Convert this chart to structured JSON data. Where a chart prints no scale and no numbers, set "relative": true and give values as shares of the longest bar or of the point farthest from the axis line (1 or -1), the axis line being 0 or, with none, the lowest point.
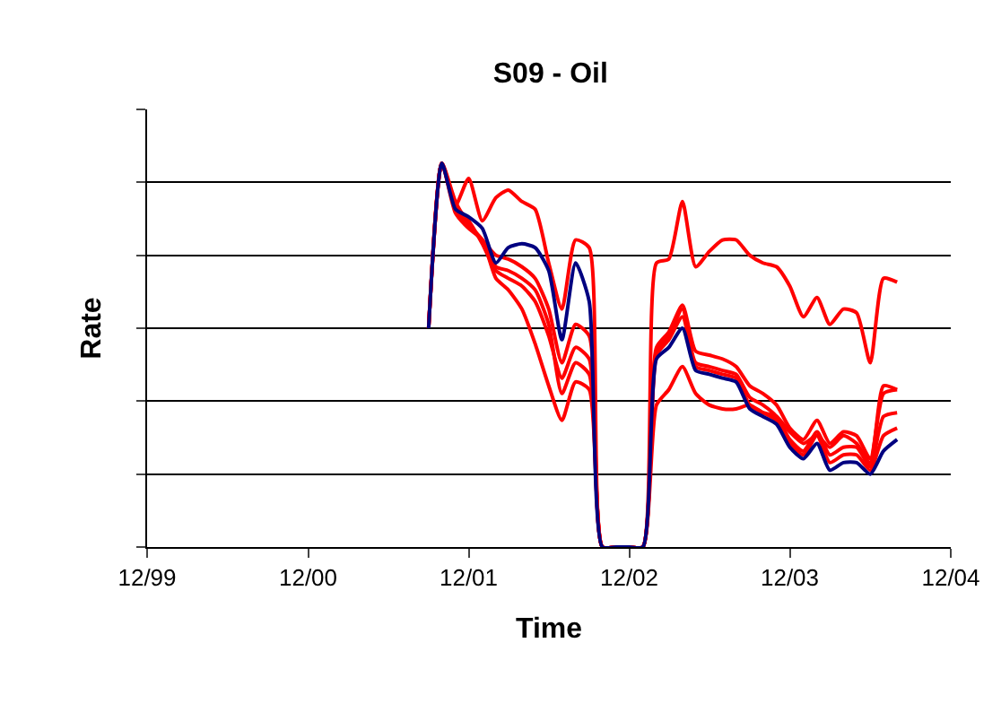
{
  "chart_data": {
    "type": "line",
    "title": "S09 - Oil",
    "xlabel": "Time",
    "ylabel": "Rate",
    "relative": true,
    "grid": "y",
    "marker": "none",
    "line_style": "solid",
    "x": [
      "2001-09",
      "2001-10",
      "2001-11",
      "2001-12",
      "2002-01",
      "2002-02",
      "2002-03",
      "2002-04",
      "2002-05",
      "2002-06",
      "2002-07",
      "2002-08",
      "2002-09",
      "2002-10",
      "2002-11",
      "2002-12",
      "2003-01",
      "2003-02",
      "2003-03",
      "2003-04",
      "2003-05",
      "2003-06",
      "2003-07",
      "2003-08",
      "2003-09",
      "2003-10",
      "2003-11",
      "2003-12",
      "2004-01",
      "2004-02",
      "2004-03",
      "2004-04",
      "2004-05",
      "2004-06",
      "2004-07",
      "2004-08"
    ],
    "xlim": [
      "1999-12",
      "2004-12"
    ],
    "xticks": [
      {
        "value": "1999-12",
        "label": "12/99"
      },
      {
        "value": "2000-12",
        "label": "12/00"
      },
      {
        "value": "2001-12",
        "label": "12/01"
      },
      {
        "value": "2002-12",
        "label": "12/02"
      },
      {
        "value": "2003-12",
        "label": "12/03"
      },
      {
        "value": "2004-12",
        "label": "12/04"
      }
    ],
    "series": [
      {
        "color": "#ff0000",
        "values": [
          0.57,
          1.0,
          0.89,
          0.96,
          0.85,
          0.91,
          0.93,
          0.9,
          0.88,
          0.74,
          0.62,
          0.8,
          0.78,
          0,
          0,
          0,
          0,
          0.74,
          0.75,
          0.9,
          0.73,
          0.77,
          0.8,
          0.8,
          0.76,
          0.74,
          0.73,
          0.68,
          0.6,
          0.65,
          0.58,
          0.62,
          0.61,
          0.48,
          0.7,
          0.69
        ]
      },
      {
        "color": "#ff0000",
        "values": [
          0.57,
          1.0,
          0.87,
          0.83,
          0.8,
          0.7,
          0.67,
          0.62,
          0.53,
          0.42,
          0.33,
          0.43,
          0.41,
          0,
          0,
          0,
          0,
          0.37,
          0.41,
          0.47,
          0.4,
          0.37,
          0.36,
          0.36,
          0.37,
          0.35,
          0.34,
          0.3,
          0.27,
          0.29,
          0.26,
          0.29,
          0.27,
          0.22,
          0.42,
          0.41
        ]
      },
      {
        "color": "#ff0000",
        "values": [
          0.57,
          1.0,
          0.9,
          0.84,
          0.8,
          0.76,
          0.75,
          0.73,
          0.7,
          0.62,
          0.48,
          0.58,
          0.55,
          0,
          0,
          0,
          0,
          0.52,
          0.56,
          0.63,
          0.51,
          0.5,
          0.49,
          0.47,
          0.42,
          0.4,
          0.37,
          0.31,
          0.28,
          0.33,
          0.27,
          0.3,
          0.29,
          0.23,
          0.4,
          0.41
        ]
      },
      {
        "color": "#ff0000",
        "values": [
          0.57,
          1.0,
          0.89,
          0.85,
          0.79,
          0.72,
          0.7,
          0.68,
          0.64,
          0.55,
          0.44,
          0.52,
          0.49,
          0,
          0,
          0,
          0,
          0.5,
          0.54,
          0.6,
          0.48,
          0.47,
          0.46,
          0.45,
          0.39,
          0.37,
          0.34,
          0.28,
          0.25,
          0.3,
          0.24,
          0.26,
          0.26,
          0.21,
          0.34,
          0.35
        ]
      },
      {
        "color": "#ff0000",
        "values": [
          0.57,
          1.0,
          0.88,
          0.84,
          0.8,
          0.73,
          0.72,
          0.7,
          0.67,
          0.58,
          0.4,
          0.48,
          0.45,
          0,
          0,
          0,
          0,
          0.51,
          0.55,
          0.62,
          0.47,
          0.46,
          0.45,
          0.44,
          0.37,
          0.35,
          0.33,
          0.27,
          0.24,
          0.29,
          0.22,
          0.24,
          0.24,
          0.2,
          0.29,
          0.31
        ]
      },
      {
        "color": "#000080",
        "values": [
          0.57,
          1.0,
          0.88,
          0.86,
          0.83,
          0.74,
          0.78,
          0.79,
          0.78,
          0.72,
          0.54,
          0.74,
          0.64,
          0,
          0,
          0,
          0,
          0.49,
          0.52,
          0.57,
          0.46,
          0.45,
          0.44,
          0.43,
          0.36,
          0.34,
          0.32,
          0.26,
          0.23,
          0.27,
          0.2,
          0.22,
          0.22,
          0.19,
          0.25,
          0.28
        ]
      }
    ]
  }
}
